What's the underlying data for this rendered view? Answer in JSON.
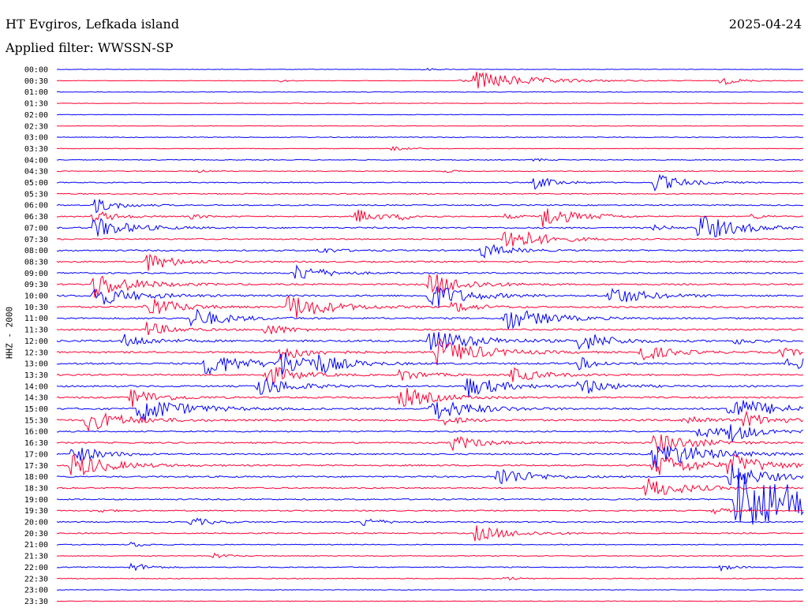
{
  "header": {
    "station": "HT Evgiros, Lefkada island",
    "filter": "Applied filter: WWSSN-SP",
    "date": "2025-04-24"
  },
  "chart_data": {
    "type": "line",
    "title": "HT Evgiros, Lefkada island",
    "subtitle": "Applied filter: WWSSN-SP",
    "ylabel": "HHZ - 2000",
    "xlabel": "",
    "row_labels": [
      "00:00",
      "00:30",
      "01:00",
      "01:30",
      "02:00",
      "02:30",
      "03:00",
      "03:30",
      "04:00",
      "04:30",
      "05:00",
      "05:30",
      "06:00",
      "06:30",
      "07:00",
      "07:30",
      "08:00",
      "08:30",
      "09:00",
      "09:30",
      "10:00",
      "10:30",
      "11:00",
      "11:30",
      "12:00",
      "12:30",
      "13:00",
      "13:30",
      "14:00",
      "14:30",
      "15:00",
      "15:30",
      "16:00",
      "16:30",
      "17:00",
      "17:30",
      "18:00",
      "18:30",
      "19:00",
      "19:30",
      "20:00",
      "20:30",
      "21:00",
      "21:30",
      "22:00",
      "22:30",
      "23:00",
      "23:30"
    ],
    "row_minutes": 30,
    "colors": [
      "#0000ff",
      "#ff0033"
    ],
    "noise": [
      0.3,
      0.3,
      0.4,
      0.35,
      0.3,
      0.3,
      0.5,
      0.4,
      0.5,
      0.5,
      0.6,
      0.6,
      0.7,
      0.7,
      0.9,
      0.8,
      0.9,
      0.9,
      0.9,
      0.9,
      1.1,
      1.0,
      1.0,
      1.0,
      1.2,
      1.1,
      1.1,
      1.0,
      1.0,
      1.0,
      1.1,
      1.1,
      0.8,
      0.9,
      0.9,
      0.9,
      0.9,
      0.8,
      0.8,
      0.7,
      0.7,
      0.7,
      0.5,
      0.5,
      0.6,
      0.5,
      0.4,
      0.4
    ],
    "events": [
      [
        0,
        0.49,
        2,
        14
      ],
      [
        1,
        0.3,
        1.5,
        10
      ],
      [
        1,
        0.54,
        2,
        10
      ],
      [
        1,
        0.56,
        12,
        60
      ],
      [
        1,
        0.89,
        6,
        18
      ],
      [
        7,
        0.45,
        3,
        14
      ],
      [
        8,
        0.64,
        2,
        12
      ],
      [
        9,
        0.19,
        2,
        10
      ],
      [
        9,
        0.52,
        2,
        10
      ],
      [
        10,
        0.64,
        8,
        24
      ],
      [
        10,
        0.8,
        12,
        30
      ],
      [
        12,
        0.05,
        10,
        24
      ],
      [
        13,
        0.05,
        8,
        24
      ],
      [
        13,
        0.18,
        3,
        16
      ],
      [
        13,
        0.4,
        10,
        24
      ],
      [
        13,
        0.46,
        4,
        14
      ],
      [
        13,
        0.6,
        3,
        16
      ],
      [
        13,
        0.65,
        16,
        30
      ],
      [
        13,
        0.73,
        2,
        14
      ],
      [
        13,
        0.93,
        4,
        14
      ],
      [
        14,
        0.05,
        14,
        36
      ],
      [
        14,
        0.8,
        3,
        20
      ],
      [
        14,
        0.86,
        18,
        40
      ],
      [
        15,
        0.6,
        18,
        36
      ],
      [
        16,
        0.35,
        4,
        20
      ],
      [
        16,
        0.57,
        10,
        26
      ],
      [
        17,
        0.12,
        12,
        30
      ],
      [
        18,
        0.32,
        12,
        28
      ],
      [
        19,
        0.05,
        18,
        40
      ],
      [
        19,
        0.5,
        16,
        36
      ],
      [
        20,
        0.05,
        14,
        40
      ],
      [
        20,
        0.5,
        18,
        36
      ],
      [
        20,
        0.74,
        14,
        34
      ],
      [
        21,
        0.12,
        16,
        30
      ],
      [
        21,
        0.31,
        18,
        40
      ],
      [
        21,
        0.53,
        8,
        24
      ],
      [
        22,
        0.18,
        14,
        34
      ],
      [
        22,
        0.6,
        16,
        40
      ],
      [
        22,
        0.65,
        2,
        12
      ],
      [
        23,
        0.12,
        10,
        26
      ],
      [
        23,
        0.28,
        8,
        24
      ],
      [
        24,
        0.09,
        8,
        30
      ],
      [
        24,
        0.5,
        16,
        44
      ],
      [
        24,
        0.7,
        14,
        30
      ],
      [
        24,
        0.91,
        4,
        20
      ],
      [
        25,
        0.3,
        10,
        30
      ],
      [
        25,
        0.51,
        18,
        44
      ],
      [
        25,
        0.78,
        12,
        30
      ],
      [
        25,
        0.97,
        6,
        20
      ],
      [
        26,
        0.2,
        16,
        40
      ],
      [
        26,
        0.3,
        16,
        40
      ],
      [
        26,
        0.35,
        8,
        24
      ],
      [
        26,
        0.7,
        8,
        20
      ],
      [
        26,
        0.98,
        10,
        30
      ],
      [
        27,
        0.28,
        14,
        30
      ],
      [
        27,
        0.46,
        8,
        24
      ],
      [
        27,
        0.61,
        10,
        30
      ],
      [
        28,
        0.27,
        14,
        34
      ],
      [
        28,
        0.55,
        14,
        36
      ],
      [
        28,
        0.7,
        12,
        28
      ],
      [
        29,
        0.1,
        12,
        30
      ],
      [
        29,
        0.46,
        14,
        36
      ],
      [
        30,
        0.11,
        18,
        44
      ],
      [
        30,
        0.5,
        16,
        40
      ],
      [
        30,
        0.9,
        16,
        46
      ],
      [
        31,
        0.04,
        14,
        40
      ],
      [
        31,
        0.52,
        6,
        20
      ],
      [
        31,
        0.84,
        8,
        22
      ],
      [
        31,
        0.92,
        10,
        30
      ],
      [
        32,
        0.86,
        8,
        30
      ],
      [
        32,
        0.9,
        12,
        30
      ],
      [
        33,
        0.53,
        10,
        30
      ],
      [
        33,
        0.8,
        14,
        40
      ],
      [
        34,
        0.02,
        12,
        30
      ],
      [
        34,
        0.8,
        20,
        50
      ],
      [
        35,
        0.02,
        16,
        40
      ],
      [
        35,
        0.8,
        16,
        44
      ],
      [
        35,
        0.9,
        14,
        36
      ],
      [
        36,
        0.59,
        14,
        34
      ],
      [
        36,
        0.9,
        16,
        40
      ],
      [
        37,
        0.79,
        14,
        40
      ],
      [
        38,
        0.91,
        44,
        90
      ],
      [
        39,
        0.05,
        3,
        16
      ],
      [
        39,
        0.88,
        4,
        16
      ],
      [
        40,
        0.18,
        6,
        20
      ],
      [
        40,
        0.41,
        6,
        20
      ],
      [
        41,
        0.56,
        10,
        40
      ],
      [
        42,
        0.1,
        4,
        14
      ],
      [
        43,
        0.21,
        4,
        14
      ],
      [
        44,
        0.1,
        6,
        18
      ],
      [
        44,
        0.89,
        4,
        14
      ],
      [
        45,
        0.6,
        3,
        12
      ]
    ]
  }
}
